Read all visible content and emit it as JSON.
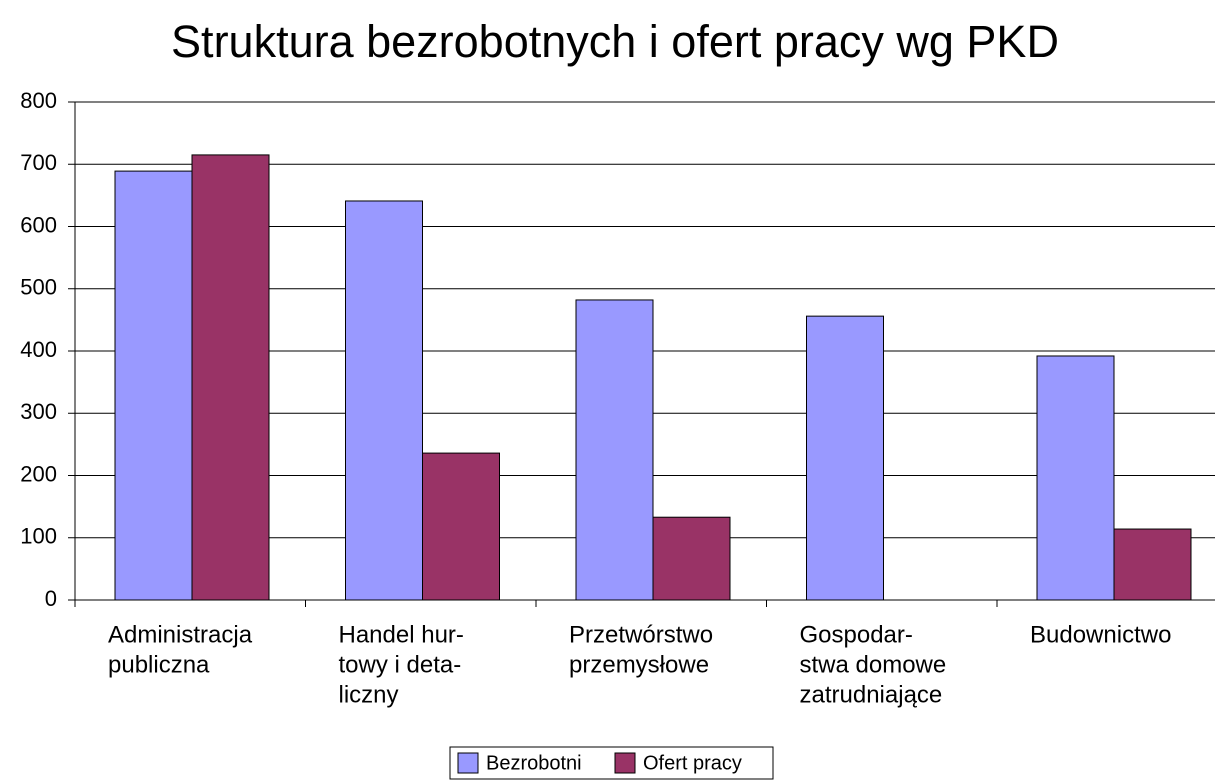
{
  "chart_data": {
    "type": "bar",
    "title": "Struktura bezrobotnych i ofert pracy wg PKD",
    "categories": [
      [
        "Administracja",
        "publiczna"
      ],
      [
        "Handel hur-",
        "towy i deta-",
        "liczny"
      ],
      [
        "Przetwórstwo",
        "przemysłowe"
      ],
      [
        "Gospodar-",
        "stwa domowe",
        "zatrudniające"
      ],
      [
        "Budownictwo"
      ]
    ],
    "series": [
      {
        "name": "Bezrobotni",
        "color": "#9999ff",
        "values": [
          689,
          641,
          482,
          456,
          392
        ]
      },
      {
        "name": "Ofert pracy",
        "color": "#993366",
        "values": [
          715,
          236,
          133,
          0,
          114
        ]
      }
    ],
    "ylim": [
      0,
      800
    ],
    "yticks": [
      0,
      100,
      200,
      300,
      400,
      500,
      600,
      700,
      800
    ],
    "grid": true,
    "legend": "bottom"
  }
}
